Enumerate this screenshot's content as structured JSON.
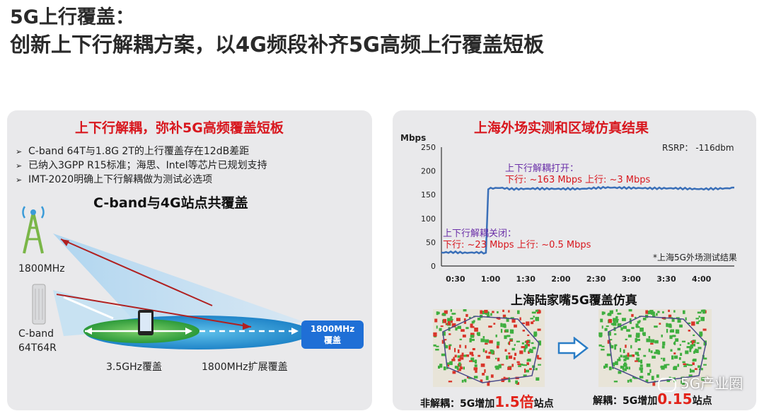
{
  "header": {
    "line1": "5G上行覆盖：",
    "line2": "创新上下行解耦方案，以4G频段补齐5G高频上行覆盖短板"
  },
  "left_panel": {
    "heading": "上下行解耦，弥补5G高频覆盖短板",
    "bullets": [
      "C-band 64T与1.8G 2T的上行覆盖存在12dB差距",
      "已纳入3GPP R15标准；海思、Intel等芯片已规划支持",
      "IMT-2020明确上下行解耦做为测试必选项"
    ],
    "bullet_symbol": "➢",
    "diagram_title": "C-band与4G站点共覆盖",
    "label_1800": "1800MHz",
    "label_cband": "C-band\n64T64R",
    "label_35": "3.5GHz覆盖",
    "label_1800ext": "1800MHz扩展覆盖",
    "box_label": "1800MHz\n覆盖",
    "colors": {
      "box": "#1f6fd6",
      "ellipse_outer": "#2a9fd8",
      "ellipse_inner": "#36b24a"
    }
  },
  "right_panel": {
    "heading": "上海外场实测和区域仿真结果",
    "rsrp": "RSRP： -116dbm",
    "ann_on_title": "上下行解耦打开：",
    "ann_on_values": "下行: ~163 Mbps  上行: ~3 Mbps",
    "ann_off_title": "上下行解耦关闭：",
    "ann_off_values": "下行: ~23 Mbps  上行: ~0.5 Mbps",
    "footnote": "*上海5G外场测试结果",
    "sim_title": "上海陆家嘴5G覆盖仿真",
    "cap_left_pre": "非解耦：5G增加",
    "cap_left_big": "1.5倍",
    "cap_left_post": "站点",
    "cap_right_pre": "解耦：5G增加",
    "cap_right_big": "0.15",
    "cap_right_post": "站点",
    "watermark": "5G产业圈"
  },
  "chart_data": {
    "type": "line",
    "ylabel": "Mbps",
    "ylim": [
      0,
      250
    ],
    "yticks": [
      0,
      50,
      100,
      150,
      200,
      250
    ],
    "xticks": [
      "0:30",
      "1:00",
      "1:30",
      "2:00",
      "2:30",
      "3:00",
      "3:30",
      "4:00"
    ],
    "x_minutes": [
      0,
      10,
      20,
      30,
      38,
      40,
      50,
      60,
      80,
      100,
      120,
      140,
      160,
      180,
      200,
      220,
      240,
      250
    ],
    "series": [
      {
        "name": "",
        "color": "#3a6fb8",
        "values": [
          27,
          28,
          27,
          28,
          28,
          163,
          165,
          163,
          164,
          163,
          162,
          164,
          163,
          163,
          164,
          163,
          164,
          165
        ]
      }
    ],
    "grid": false
  }
}
